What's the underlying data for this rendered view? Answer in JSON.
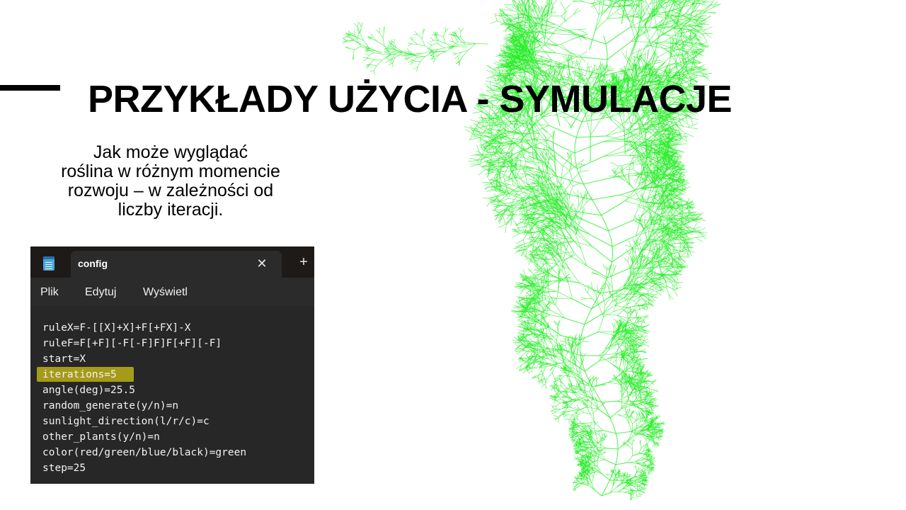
{
  "slide": {
    "title": "PRZYKŁADY UŻYCIA - SYMULACJE",
    "subtitle_lines": [
      "Jak może wyglądać",
      "roślina w różnym momencie",
      "rozwoju – w zależności od",
      "liczby iteracji."
    ],
    "accent_color": "#000000",
    "plant_color": "#22ee22"
  },
  "notepad": {
    "app_icon": "notepad-icon",
    "tab_label": "config",
    "close_icon": "close-icon",
    "new_tab_icon": "plus-icon",
    "close_glyph": "✕",
    "new_tab_glyph": "+",
    "menu": [
      "Plik",
      "Edytuj",
      "Wyświetl"
    ],
    "lines": [
      "ruleX=F-[[X]+X]+F[+FX]-X",
      "ruleF=F[+F][-F[-F]F]F[+F][-F]",
      "start=X",
      "iterations=5",
      "angle(deg)=25.5",
      "random_generate(y/n)=n",
      "sunlight_direction(l/r/c)=c",
      "other_plants(y/n)=n",
      "color(red/green/blue/black)=green",
      "step=25"
    ],
    "highlighted_line": "iterations=5",
    "highlight_color": "#a49b1a"
  }
}
